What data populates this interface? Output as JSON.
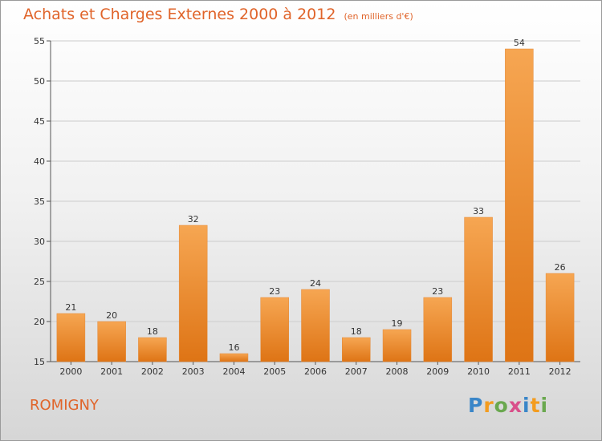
{
  "title": {
    "main": "Achats et Charges Externes 2000 à 2012",
    "unit": "(en milliers d'€)"
  },
  "place": "ROMIGNY",
  "logo": {
    "text": "Proxiti",
    "letters": [
      {
        "char": "P",
        "color": "#3a86c8"
      },
      {
        "char": "r",
        "color": "#f39c1f"
      },
      {
        "char": "o",
        "color": "#6aa84f"
      },
      {
        "char": "x",
        "color": "#d94f8a"
      },
      {
        "char": "i",
        "color": "#3a86c8"
      },
      {
        "char": "t",
        "color": "#f39c1f"
      },
      {
        "char": "i",
        "color": "#6aa84f"
      }
    ]
  },
  "colors": {
    "bar_light": "#f6a652",
    "bar_dark": "#de7415",
    "title": "#e0642a",
    "grid": "#cccccc"
  },
  "chart_data": {
    "type": "bar",
    "title": "Achats et Charges Externes 2000 à 2012",
    "subtitle": "(en milliers d'€)",
    "categories": [
      "2000",
      "2001",
      "2002",
      "2003",
      "2004",
      "2005",
      "2006",
      "2007",
      "2008",
      "2009",
      "2010",
      "2011",
      "2012"
    ],
    "values": [
      21,
      20,
      18,
      32,
      16,
      23,
      24,
      18,
      19,
      23,
      33,
      54,
      26
    ],
    "ylim": [
      15,
      55
    ],
    "yticks": [
      15,
      20,
      25,
      30,
      35,
      40,
      45,
      50,
      55
    ],
    "xlabel": "",
    "ylabel": "",
    "grid": true
  }
}
